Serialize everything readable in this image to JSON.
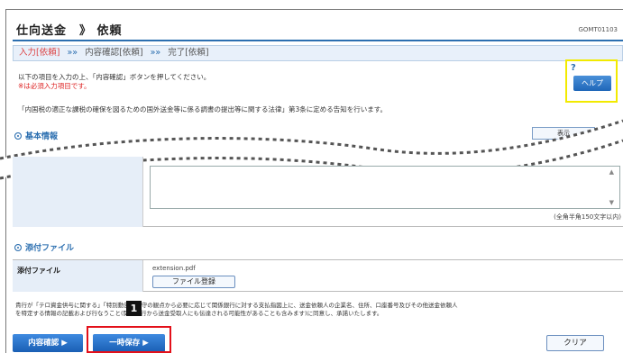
{
  "header": {
    "title": "仕向送金　》 依頼",
    "screen_id": "GOMT01103"
  },
  "steps": {
    "active": "入力[依頼]",
    "separator": "»»",
    "confirm": "内容確認[依頼]",
    "done": "完了[依頼]"
  },
  "instructions": {
    "line1": "以下の項目を入力の上、「内容確認」ボタンを押してください。",
    "required": "※は必須入力項目です。",
    "notice": "「内国税の適正な課税の確保を図るための国外送金等に係る調書の提出等に関する法律」第3条に定める告知を行います。"
  },
  "help": {
    "icon": "?",
    "label": "ヘルプ"
  },
  "basic_section": {
    "title": "基本情報",
    "side_button": "表示"
  },
  "message_field": {
    "char_limit": "(全角半角150文字以内)"
  },
  "attachments": {
    "section_title": "添付ファイル",
    "label": "添付ファイル",
    "file_name": "extension.pdf",
    "register_button": "ファイル登録"
  },
  "disclaimer": {
    "line1": "貴行が「テロ資金供与に関する」「特別動告」遵守の観点から必要に応じて関係銀行に対する支払指図上に、送金依頼人の企業名、住所、口座番号及びその他送金依頼人",
    "line2": "を特定する情報の記載および行なうこと(関係銀行から送金受取人にも伝達される可能性があることも含みます)に同意し、承諾いたします。"
  },
  "buttons": {
    "confirm": "内容確認 ▶",
    "save": "一時保存 ▶",
    "clear": "クリア"
  },
  "annotation": {
    "badge": "1"
  },
  "colors": {
    "accent": "#2c6fb0",
    "highlight": "#e3101a",
    "help_frame": "#f2ea00"
  }
}
